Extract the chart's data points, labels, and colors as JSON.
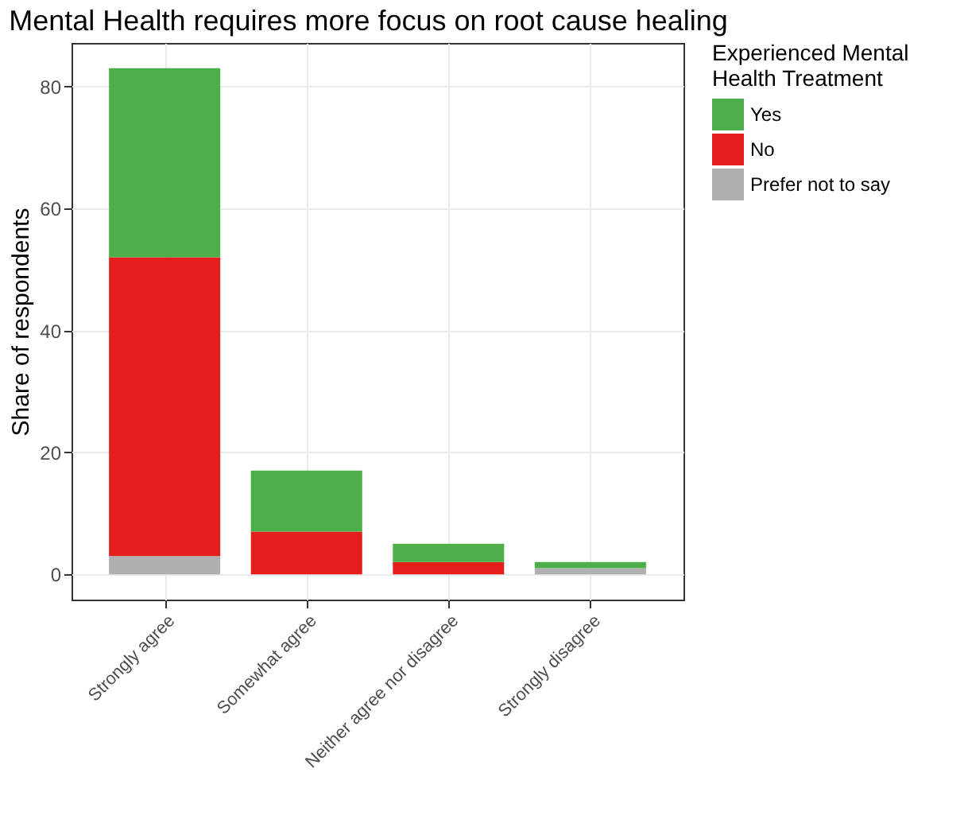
{
  "chart_data": {
    "type": "bar",
    "stacked": true,
    "title": "Mental Health requires more focus on root cause healing",
    "ylabel": "Share of respondents",
    "legend_title": "Experienced Mental\nHealth Treatment",
    "categories": [
      "Strongly agree",
      "Somewhat agree",
      "Neither agree nor disagree",
      "Strongly disagree"
    ],
    "series": [
      {
        "name": "Prefer not to say",
        "color": "#b0b0b0",
        "values": [
          3,
          0,
          0,
          1
        ]
      },
      {
        "name": "No",
        "color": "#e41e1b",
        "values": [
          49,
          7,
          2,
          0
        ]
      },
      {
        "name": "Yes",
        "color": "#4daf4a",
        "values": [
          31,
          10,
          3,
          1
        ]
      }
    ],
    "ylim": [
      -4.15,
      87.15
    ],
    "yticks": [
      0,
      20,
      40,
      60,
      80
    ],
    "grid": true,
    "legend": "right"
  }
}
